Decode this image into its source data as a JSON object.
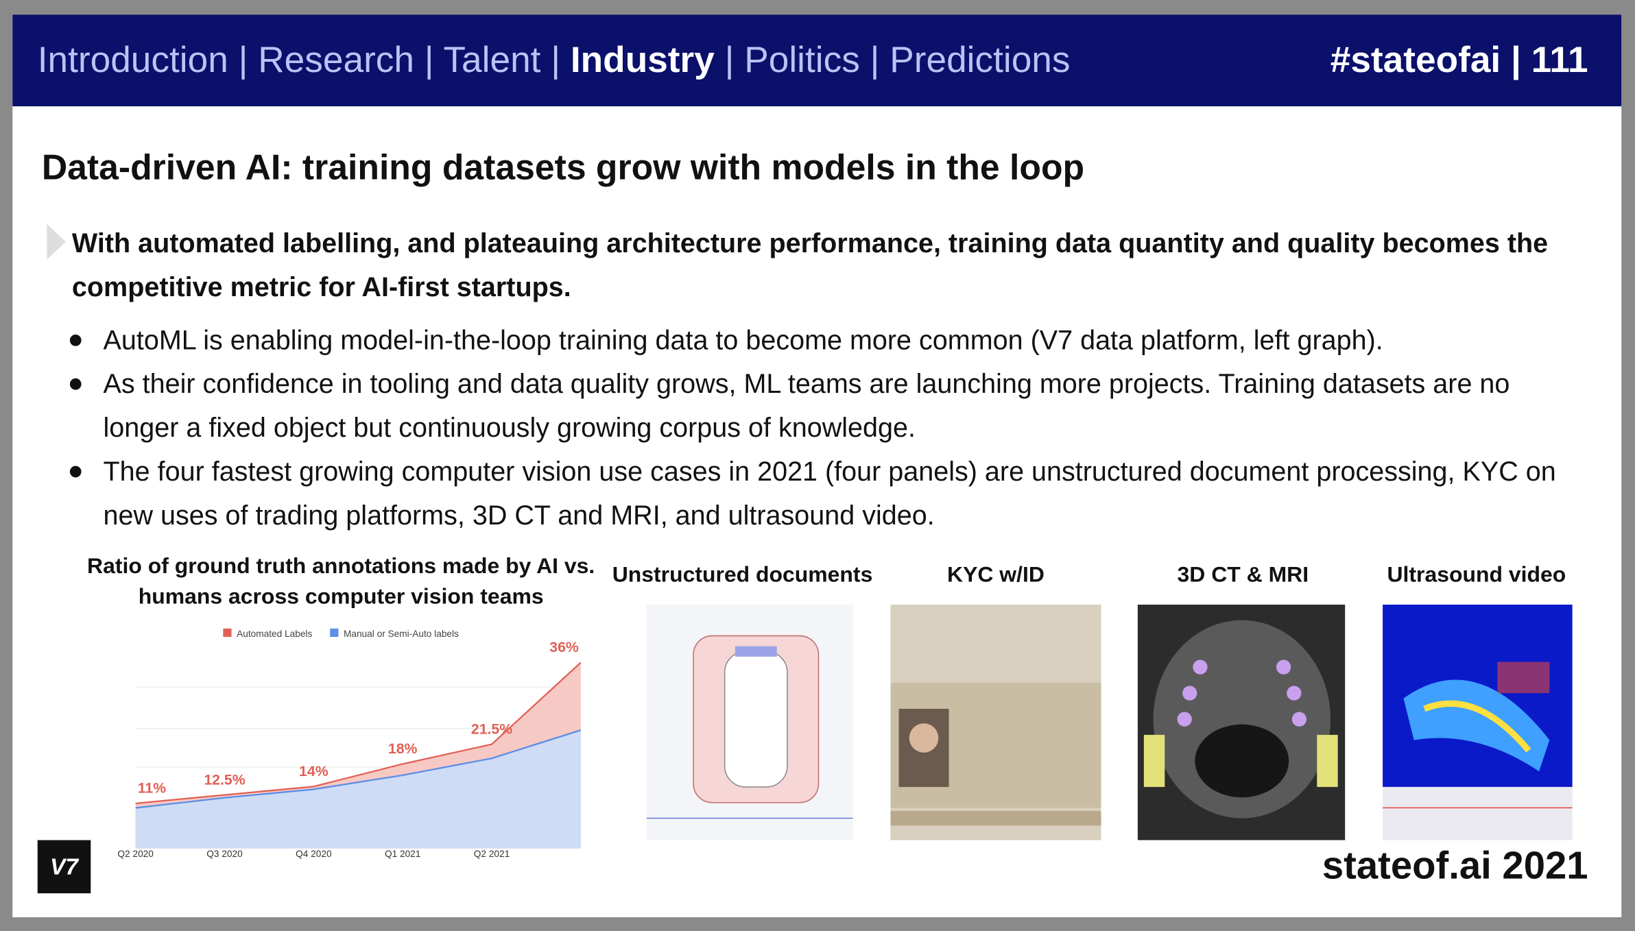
{
  "header": {
    "nav": [
      "Introduction",
      "Research",
      "Talent",
      "Industry",
      "Politics",
      "Predictions"
    ],
    "separator": "|",
    "current": 3,
    "tag": "#stateofai | 111"
  },
  "title": "Data-driven AI: training datasets grow with models in the loop",
  "lead": "With automated labelling, and plateauing architecture performance, training data quantity and quality becomes the competitive metric for AI-first startups.",
  "bullets": [
    "AutoML is enabling model-in-the-loop training data to become more common (V7 data platform, left graph).",
    "As their confidence in tooling and data quality grows, ML teams are launching more projects. Training datasets are no longer a fixed object but continuously growing corpus of knowledge.",
    "The four fastest growing computer vision use cases in 2021 (four panels) are unstructured document processing, KYC on new uses of trading platforms, 3D CT and MRI, and ultrasound video."
  ],
  "chart_data": {
    "type": "area",
    "title": "Ratio of ground truth annotations made by AI vs. humans across computer vision teams",
    "categories": [
      "Q2 2020",
      "Q3 2020",
      "Q4 2020",
      "Q1 2021",
      "Q2 2021",
      null
    ],
    "series": [
      {
        "name": "Automated Labels",
        "color": "#e06055",
        "values": [
          11,
          12.5,
          14,
          18,
          21.5,
          36
        ],
        "value_labels": [
          "11%",
          "12.5%",
          "14%",
          "18%",
          "21.5%",
          "36%"
        ]
      },
      {
        "name": "Manual or Semi-Auto labels",
        "color": "#5b8ee6",
        "values": [
          10.2,
          12,
          13.5,
          16,
          19,
          24
        ]
      }
    ],
    "ylim": [
      3,
      40
    ],
    "legend": "top"
  },
  "panels": [
    "Unstructured documents",
    "KYC w/ID",
    "3D CT & MRI",
    "Ultrasound video"
  ],
  "footer": {
    "logo": "V7",
    "brand": "stateof.ai 2021"
  }
}
